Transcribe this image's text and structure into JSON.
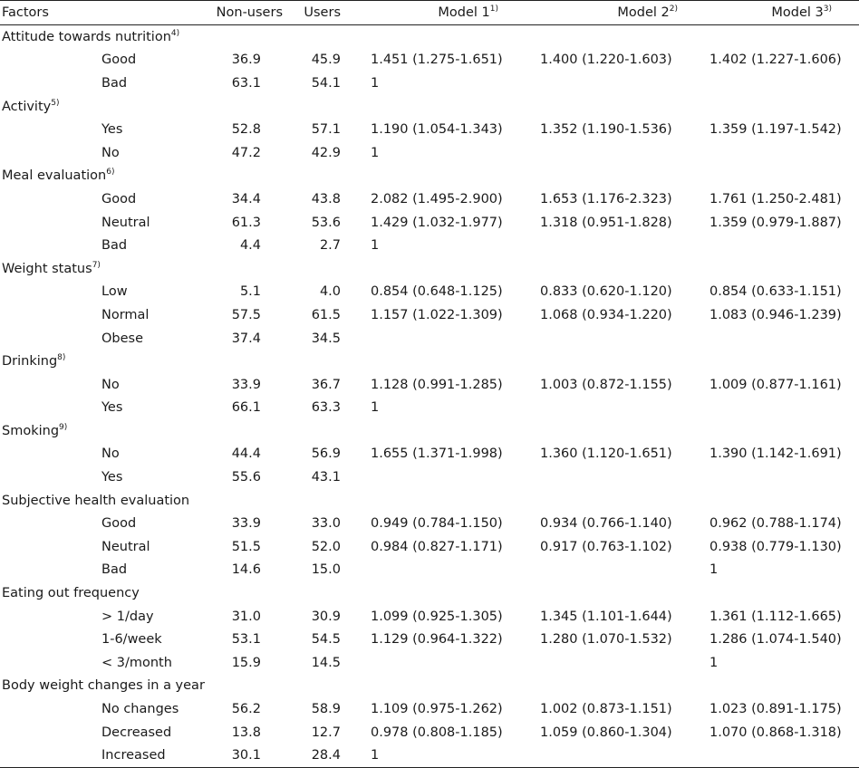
{
  "header": {
    "factors": "Factors",
    "non_users": "Non-users",
    "users": "Users",
    "model1": "Model 1",
    "model1_sup": "1)",
    "model2": "Model 2",
    "model2_sup": "2)",
    "model3": "Model 3",
    "model3_sup": "3)"
  },
  "groups": [
    {
      "title": "Attitude towards nutrition",
      "sup": "4)",
      "rows": [
        {
          "level": "Good",
          "non": "36.9",
          "users": "45.9",
          "m1": "1.451 (1.275-1.651)",
          "m2": "1.400 (1.220-1.603)",
          "m3": "1.402 (1.227-1.606)"
        },
        {
          "level": "Bad",
          "non": "63.1",
          "users": "54.1",
          "m1": "1",
          "m2": "",
          "m3": ""
        }
      ]
    },
    {
      "title": "Activity",
      "sup": "5)",
      "rows": [
        {
          "level": "Yes",
          "non": "52.8",
          "users": "57.1",
          "m1": "1.190 (1.054-1.343)",
          "m2": "1.352 (1.190-1.536)",
          "m3": "1.359 (1.197-1.542)"
        },
        {
          "level": "No",
          "non": "47.2",
          "users": "42.9",
          "m1": "1",
          "m2": "",
          "m3": ""
        }
      ]
    },
    {
      "title": "Meal evaluation",
      "sup": "6)",
      "rows": [
        {
          "level": "Good",
          "non": "34.4",
          "users": "43.8",
          "m1": "2.082 (1.495-2.900)",
          "m2": "1.653 (1.176-2.323)",
          "m3": "1.761 (1.250-2.481)"
        },
        {
          "level": "Neutral",
          "non": "61.3",
          "users": "53.6",
          "m1": "1.429 (1.032-1.977)",
          "m2": "1.318 (0.951-1.828)",
          "m3": "1.359 (0.979-1.887)"
        },
        {
          "level": "Bad",
          "non": "4.4",
          "users": "2.7",
          "m1": "1",
          "m2": "",
          "m3": ""
        }
      ]
    },
    {
      "title": "Weight status",
      "sup": "7)",
      "rows": [
        {
          "level": "Low",
          "non": "5.1",
          "users": "4.0",
          "m1": "0.854 (0.648-1.125)",
          "m2": "0.833 (0.620-1.120)",
          "m3": "0.854 (0.633-1.151)"
        },
        {
          "level": "Normal",
          "non": "57.5",
          "users": "61.5",
          "m1": "1.157 (1.022-1.309)",
          "m2": "1.068 (0.934-1.220)",
          "m3": "1.083 (0.946-1.239)"
        },
        {
          "level": "Obese",
          "non": "37.4",
          "users": "34.5",
          "m1": "",
          "m2": "",
          "m3": ""
        }
      ]
    },
    {
      "title": "Drinking",
      "sup": "8)",
      "rows": [
        {
          "level": "No",
          "non": "33.9",
          "users": "36.7",
          "m1": "1.128 (0.991-1.285)",
          "m2": "1.003 (0.872-1.155)",
          "m3": "1.009 (0.877-1.161)"
        },
        {
          "level": "Yes",
          "non": "66.1",
          "users": "63.3",
          "m1": "1",
          "m2": "",
          "m3": ""
        }
      ]
    },
    {
      "title": "Smoking",
      "sup": "9)",
      "rows": [
        {
          "level": "No",
          "non": "44.4",
          "users": "56.9",
          "m1": "1.655 (1.371-1.998)",
          "m2": "1.360 (1.120-1.651)",
          "m3": "1.390 (1.142-1.691)"
        },
        {
          "level": "Yes",
          "non": "55.6",
          "users": "43.1",
          "m1": "",
          "m2": "",
          "m3": ""
        }
      ]
    },
    {
      "title": "Subjective health evaluation",
      "sup": "",
      "rows": [
        {
          "level": "Good",
          "non": "33.9",
          "users": "33.0",
          "m1": "0.949 (0.784-1.150)",
          "m2": "0.934 (0.766-1.140)",
          "m3": "0.962 (0.788-1.174)"
        },
        {
          "level": "Neutral",
          "non": "51.5",
          "users": "52.0",
          "m1": "0.984 (0.827-1.171)",
          "m2": "0.917 (0.763-1.102)",
          "m3": "0.938 (0.779-1.130)"
        },
        {
          "level": "Bad",
          "non": "14.6",
          "users": "15.0",
          "m1": "",
          "m2": "",
          "m3": "1"
        }
      ]
    },
    {
      "title": "Eating out frequency",
      "sup": "",
      "rows": [
        {
          "level": "> 1/day",
          "non": "31.0",
          "users": "30.9",
          "m1": "1.099 (0.925-1.305)",
          "m2": "1.345 (1.101-1.644)",
          "m3": "1.361 (1.112-1.665)"
        },
        {
          "level": "1-6/week",
          "non": "53.1",
          "users": "54.5",
          "m1": "1.129 (0.964-1.322)",
          "m2": "1.280 (1.070-1.532)",
          "m3": "1.286 (1.074-1.540)"
        },
        {
          "level": "< 3/month",
          "non": "15.9",
          "users": "14.5",
          "m1": "",
          "m2": "",
          "m3": "1"
        }
      ]
    },
    {
      "title": "Body weight changes in a year",
      "sup": "",
      "rows": [
        {
          "level": "No changes",
          "non": "56.2",
          "users": "58.9",
          "m1": "1.109 (0.975-1.262)",
          "m2": "1.002 (0.873-1.151)",
          "m3": "1.023 (0.891-1.175)"
        },
        {
          "level": "Decreased",
          "non": "13.8",
          "users": "12.7",
          "m1": "0.978 (0.808-1.185)",
          "m2": "1.059 (0.860-1.304)",
          "m3": "1.070 (0.868-1.318)"
        },
        {
          "level": "Increased",
          "non": "30.1",
          "users": "28.4",
          "m1": "1",
          "m2": "",
          "m3": ""
        }
      ]
    }
  ]
}
